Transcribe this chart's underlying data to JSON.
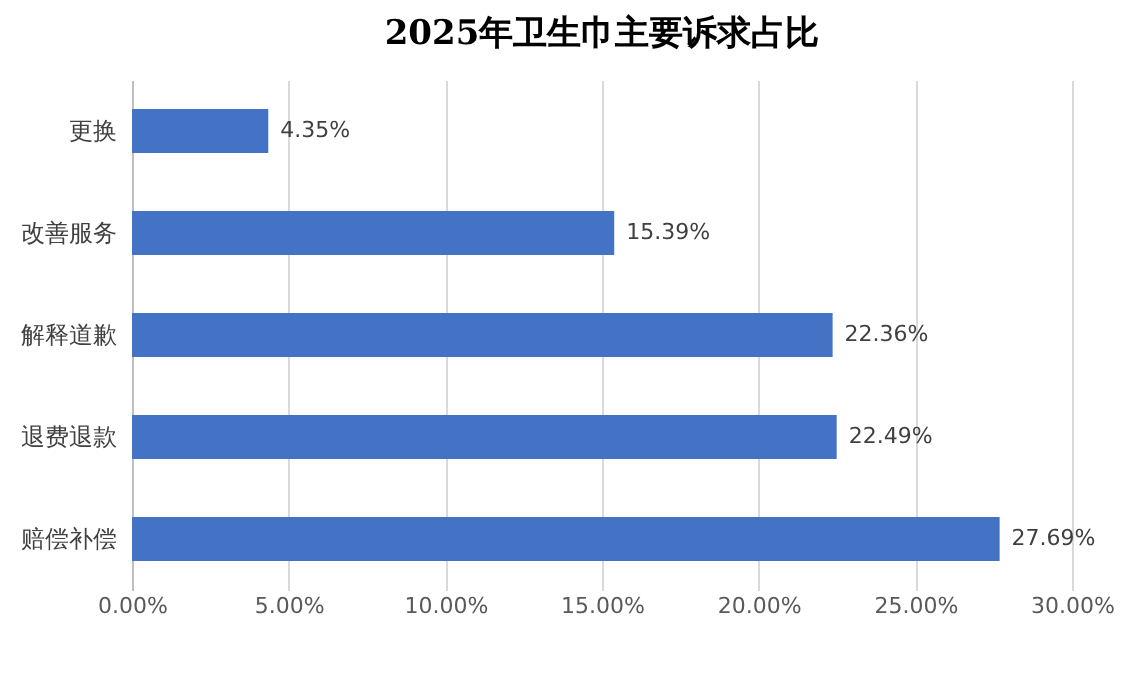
{
  "chart_data": {
    "type": "bar",
    "orientation": "horizontal",
    "title": "2025年卫生巾主要诉求占比",
    "categories": [
      "更换",
      "改善服务",
      "解释道歉",
      "退费退款",
      "赔偿补偿"
    ],
    "values": [
      4.35,
      15.39,
      22.36,
      22.49,
      27.69
    ],
    "value_labels": [
      "4.35%",
      "15.39%",
      "22.36%",
      "22.49%",
      "27.69%"
    ],
    "color": "#4472c4",
    "xlim": [
      0,
      30
    ],
    "xticks": [
      {
        "value": 0,
        "label": "0.00%"
      },
      {
        "value": 5,
        "label": "5.00%"
      },
      {
        "value": 10,
        "label": "10.00%"
      },
      {
        "value": 15,
        "label": "15.00%"
      },
      {
        "value": 20,
        "label": "20.00%"
      },
      {
        "value": 25,
        "label": "25.00%"
      },
      {
        "value": 30,
        "label": "30.00%"
      }
    ],
    "grid": "x"
  }
}
